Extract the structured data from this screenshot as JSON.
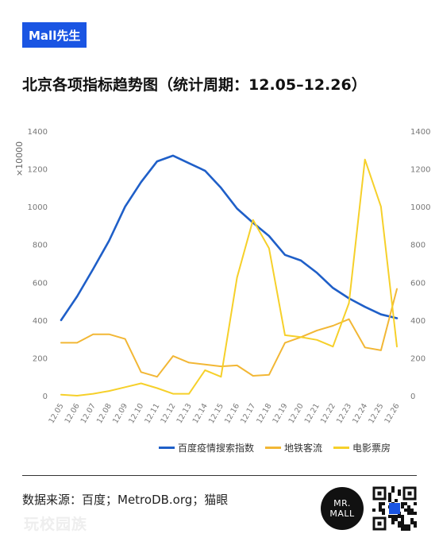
{
  "brand": {
    "label": "Mall先生"
  },
  "title": "北京各项指标趋势图（统计周期：12.05–12.26）",
  "source": "数据来源：百度；MetroDB.org；猫眼",
  "watermark": "玩校园族",
  "logo": {
    "line1": "MR.",
    "line2": "MALL"
  },
  "colors": {
    "brand": "#1a55e3",
    "search": "#1f5fc8",
    "metro": "#f2b735",
    "boxoffice": "#f6d02a"
  },
  "chart_data": {
    "type": "line",
    "title": "北京各项指标趋势图（统计周期：12.05–12.26）",
    "ylabel": "×10000",
    "ylim": [
      0,
      1400
    ],
    "y2lim": [
      0,
      1400
    ],
    "yticks": [
      "0",
      "200",
      "400",
      "600",
      "800",
      "1000",
      "1200",
      "1400"
    ],
    "y2ticks": [
      "0",
      "200",
      "400",
      "600",
      "800",
      "1000",
      "1200",
      "1400"
    ],
    "grid": false,
    "legend_position": "bottom",
    "categories": [
      "12.05",
      "12.06",
      "12.07",
      "12.08",
      "12.09",
      "12.10",
      "12.11",
      "12.12",
      "12.13",
      "12.14",
      "12.15",
      "12.16",
      "12.17",
      "12.18",
      "12.19",
      "12.20",
      "12.21",
      "12.22",
      "12.23",
      "12.24",
      "12.25",
      "12.26"
    ],
    "series": [
      {
        "name": "百度疫情搜索指数",
        "color": "#1f5fc8",
        "axis": "left",
        "values": [
          400,
          525,
          670,
          820,
          1000,
          1130,
          1240,
          1270,
          1230,
          1190,
          1100,
          990,
          915,
          845,
          745,
          715,
          650,
          570,
          515,
          470,
          430,
          410
        ]
      },
      {
        "name": "地铁客流",
        "color": "#f2b735",
        "axis": "left",
        "values": [
          280,
          280,
          325,
          325,
          300,
          125,
          100,
          210,
          175,
          165,
          155,
          160,
          105,
          110,
          280,
          310,
          345,
          370,
          405,
          255,
          240,
          565
        ]
      },
      {
        "name": "电影票房",
        "color": "#f6d02a",
        "axis": "right",
        "values": [
          5,
          0,
          10,
          25,
          45,
          65,
          40,
          10,
          10,
          135,
          100,
          625,
          930,
          780,
          320,
          310,
          295,
          260,
          490,
          1250,
          1000,
          260
        ]
      }
    ]
  }
}
